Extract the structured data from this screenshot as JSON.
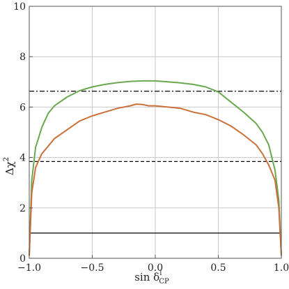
{
  "chart_data": {
    "type": "line",
    "xlabel": "sin δ_CP^l",
    "xlabel_main": "sin δ",
    "xlabel_sup": "l",
    "xlabel_sub": "CP",
    "ylabel": "Δχ²",
    "ylabel_main": "Δχ",
    "ylabel_sup": "2",
    "xlim": [
      -1.0,
      1.0
    ],
    "ylim": [
      0,
      10
    ],
    "xticks": [
      -1.0,
      -0.5,
      0.0,
      0.5,
      1.0
    ],
    "xtick_labels": [
      "−1.0",
      "−0.5",
      "0.0",
      "0.5",
      "1.0"
    ],
    "yticks": [
      0,
      2,
      4,
      6,
      8,
      10
    ],
    "ytick_labels": [
      "0",
      "2",
      "4",
      "6",
      "8",
      "10"
    ],
    "grid": true,
    "series": [
      {
        "color": "#6aa84f",
        "x": [
          -1.0,
          -0.98,
          -0.95,
          -0.9,
          -0.85,
          -0.8,
          -0.7,
          -0.6,
          -0.5,
          -0.4,
          -0.3,
          -0.2,
          -0.1,
          0.0,
          0.1,
          0.2,
          0.3,
          0.4,
          0.5,
          0.6,
          0.7,
          0.8,
          0.85,
          0.9,
          0.95,
          0.98,
          1.0
        ],
        "y": [
          0.1,
          3.1,
          4.4,
          5.2,
          5.75,
          6.05,
          6.4,
          6.65,
          6.8,
          6.9,
          6.97,
          7.02,
          7.04,
          7.04,
          7.0,
          6.96,
          6.9,
          6.8,
          6.6,
          6.2,
          5.8,
          5.35,
          5.0,
          4.5,
          3.5,
          2.3,
          0.1
        ]
      },
      {
        "color": "#c9703b",
        "x": [
          -1.0,
          -0.98,
          -0.95,
          -0.9,
          -0.85,
          -0.8,
          -0.7,
          -0.6,
          -0.5,
          -0.4,
          -0.3,
          -0.2,
          -0.15,
          -0.1,
          -0.05,
          0.0,
          0.1,
          0.2,
          0.3,
          0.4,
          0.5,
          0.6,
          0.7,
          0.8,
          0.85,
          0.9,
          0.95,
          0.98,
          1.0
        ],
        "y": [
          0.1,
          2.6,
          3.6,
          4.15,
          4.45,
          4.75,
          5.1,
          5.45,
          5.65,
          5.8,
          5.95,
          6.05,
          6.12,
          6.1,
          6.05,
          6.05,
          6.0,
          5.95,
          5.8,
          5.7,
          5.5,
          5.25,
          4.9,
          4.5,
          4.15,
          3.7,
          3.1,
          2.0,
          0.1
        ]
      }
    ],
    "reference_lines": [
      {
        "y": 1.0,
        "style": "solid",
        "color": "#000000"
      },
      {
        "y": 3.84,
        "style": "dashed",
        "color": "#000000"
      },
      {
        "y": 6.63,
        "style": "dashdot",
        "color": "#000000"
      }
    ]
  }
}
